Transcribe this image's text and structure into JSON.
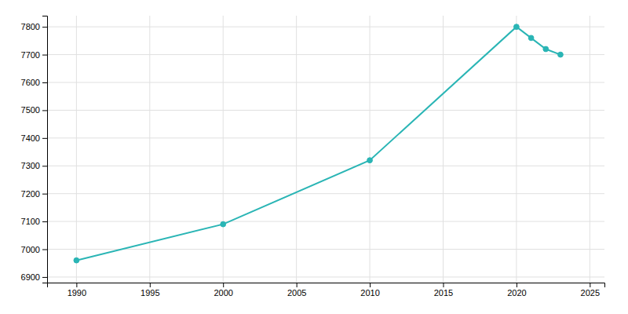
{
  "chart_data": {
    "type": "line",
    "x": [
      1990,
      2000,
      2010,
      2020,
      2021,
      2022,
      2023
    ],
    "values": [
      6960,
      7090,
      7320,
      7800,
      7760,
      7720,
      7700
    ],
    "color": "#2ab5b5",
    "marker": "circle",
    "xlim": [
      1988,
      2026
    ],
    "ylim": [
      6880,
      7840
    ],
    "xticks": [
      1990,
      1995,
      2000,
      2005,
      2010,
      2015,
      2020,
      2025
    ],
    "yticks": [
      6900,
      7000,
      7100,
      7200,
      7300,
      7400,
      7500,
      7600,
      7700,
      7800
    ],
    "grid": true
  }
}
